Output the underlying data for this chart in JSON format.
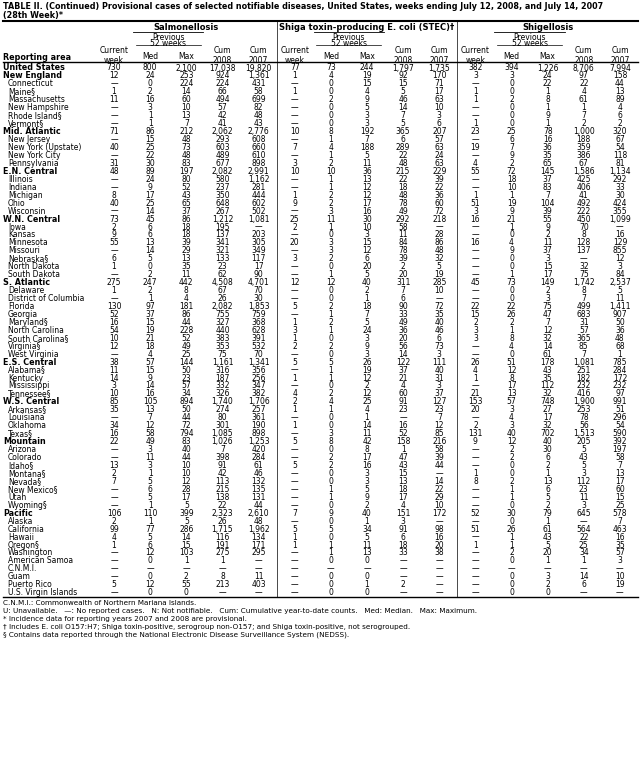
{
  "title1": "TABLE II. (Continued) Provisional cases of selected notifiable diseases, United States, weeks ending July 12, 2008, and July 14, 2007",
  "title2": "(28th Week)*",
  "col_groups": [
    "Salmonellosis",
    "Shiga toxin-producing E. coli (STEC)†",
    "Shigellosis"
  ],
  "rows": [
    [
      "United States",
      "730",
      "800",
      "2,100",
      "17,038",
      "19,820",
      "77",
      "73",
      "244",
      "1,797",
      "1,735",
      "382",
      "394",
      "1,226",
      "8,706",
      "7,994"
    ],
    [
      "New England",
      "12",
      "24",
      "253",
      "924",
      "1,361",
      "1",
      "4",
      "19",
      "92",
      "170",
      "3",
      "3",
      "24",
      "97",
      "158"
    ],
    [
      "Connecticut",
      "—",
      "0",
      "224",
      "224",
      "431",
      "—",
      "0",
      "15",
      "15",
      "71",
      "—",
      "0",
      "22",
      "22",
      "44"
    ],
    [
      "Maine§",
      "1",
      "2",
      "14",
      "66",
      "58",
      "1",
      "0",
      "4",
      "5",
      "17",
      "1",
      "0",
      "1",
      "4",
      "13"
    ],
    [
      "Massachusetts",
      "11",
      "16",
      "60",
      "494",
      "699",
      "—",
      "2",
      "9",
      "46",
      "63",
      "1",
      "2",
      "8",
      "61",
      "89"
    ],
    [
      "New Hampshire",
      "—",
      "3",
      "10",
      "57",
      "82",
      "—",
      "0",
      "5",
      "14",
      "10",
      "—",
      "0",
      "1",
      "1",
      "4"
    ],
    [
      "Rhode Island§",
      "—",
      "1",
      "13",
      "42",
      "48",
      "—",
      "0",
      "3",
      "7",
      "3",
      "—",
      "0",
      "9",
      "7",
      "6"
    ],
    [
      "Vermont§",
      "—",
      "1",
      "7",
      "41",
      "43",
      "—",
      "0",
      "3",
      "5",
      "6",
      "1",
      "0",
      "1",
      "2",
      "2"
    ],
    [
      "Mid. Atlantic",
      "71",
      "86",
      "212",
      "2,062",
      "2,776",
      "10",
      "8",
      "192",
      "365",
      "207",
      "23",
      "25",
      "78",
      "1,000",
      "320"
    ],
    [
      "New Jersey",
      "—",
      "15",
      "48",
      "293",
      "608",
      "—",
      "1",
      "7",
      "6",
      "57",
      "—",
      "6",
      "16",
      "188",
      "67"
    ],
    [
      "New York (Upstate)",
      "40",
      "25",
      "73",
      "603",
      "660",
      "7",
      "4",
      "188",
      "289",
      "63",
      "19",
      "7",
      "36",
      "359",
      "54"
    ],
    [
      "New York City",
      "—",
      "22",
      "48",
      "489",
      "610",
      "—",
      "1",
      "5",
      "22",
      "24",
      "—",
      "9",
      "35",
      "386",
      "118"
    ],
    [
      "Pennsylvania",
      "31",
      "30",
      "83",
      "677",
      "898",
      "3",
      "2",
      "11",
      "48",
      "63",
      "4",
      "2",
      "65",
      "67",
      "81"
    ],
    [
      "E.N. Central",
      "48",
      "89",
      "197",
      "2,082",
      "2,991",
      "10",
      "10",
      "36",
      "215",
      "229",
      "55",
      "72",
      "145",
      "1,586",
      "1,134"
    ],
    [
      "Illinois",
      "—",
      "24",
      "80",
      "580",
      "1,162",
      "—",
      "1",
      "13",
      "22",
      "39",
      "—",
      "18",
      "37",
      "425",
      "292"
    ],
    [
      "Indiana",
      "—",
      "9",
      "52",
      "237",
      "281",
      "—",
      "1",
      "12",
      "18",
      "22",
      "—",
      "10",
      "83",
      "406",
      "33"
    ],
    [
      "Michigan",
      "8",
      "17",
      "43",
      "350",
      "444",
      "1",
      "2",
      "12",
      "48",
      "36",
      "1",
      "1",
      "7",
      "41",
      "30"
    ],
    [
      "Ohio",
      "40",
      "25",
      "65",
      "648",
      "602",
      "9",
      "2",
      "17",
      "78",
      "60",
      "51",
      "19",
      "104",
      "492",
      "424"
    ],
    [
      "Wisconsin",
      "—",
      "14",
      "37",
      "267",
      "502",
      "—",
      "3",
      "16",
      "49",
      "72",
      "3",
      "9",
      "39",
      "222",
      "355"
    ],
    [
      "W.N. Central",
      "73",
      "45",
      "86",
      "1,212",
      "1,081",
      "25",
      "11",
      "30",
      "292",
      "218",
      "16",
      "21",
      "55",
      "450",
      "1,099"
    ],
    [
      "Iowa",
      "2",
      "6",
      "18",
      "195",
      "—",
      "2",
      "1",
      "10",
      "58",
      "—",
      "—",
      "1",
      "9",
      "70",
      "—"
    ],
    [
      "Kansas",
      "9",
      "6",
      "18",
      "137",
      "203",
      "—",
      "0",
      "3",
      "11",
      "28",
      "—",
      "0",
      "2",
      "8",
      "16"
    ],
    [
      "Minnesota",
      "55",
      "13",
      "39",
      "341",
      "305",
      "20",
      "3",
      "15",
      "84",
      "86",
      "16",
      "4",
      "11",
      "128",
      "129"
    ],
    [
      "Missouri",
      "—",
      "14",
      "29",
      "321",
      "349",
      "—",
      "3",
      "12",
      "78",
      "48",
      "—",
      "9",
      "37",
      "137",
      "855"
    ],
    [
      "Nebraska§",
      "6",
      "5",
      "13",
      "133",
      "117",
      "3",
      "2",
      "6",
      "39",
      "32",
      "—",
      "0",
      "3",
      "—",
      "12"
    ],
    [
      "North Dakota",
      "1",
      "0",
      "35",
      "23",
      "17",
      "—",
      "0",
      "20",
      "2",
      "5",
      "—",
      "0",
      "15",
      "32",
      "3"
    ],
    [
      "South Dakota",
      "—",
      "2",
      "11",
      "62",
      "90",
      "—",
      "1",
      "5",
      "20",
      "19",
      "—",
      "1",
      "17",
      "75",
      "84"
    ],
    [
      "S. Atlantic",
      "275",
      "247",
      "442",
      "4,508",
      "4,701",
      "12",
      "12",
      "40",
      "311",
      "285",
      "45",
      "73",
      "149",
      "1,742",
      "2,537"
    ],
    [
      "Delaware",
      "1",
      "2",
      "8",
      "67",
      "70",
      "—",
      "0",
      "2",
      "7",
      "10",
      "—",
      "0",
      "2",
      "8",
      "5"
    ],
    [
      "District of Columbia",
      "—",
      "1",
      "4",
      "26",
      "30",
      "—",
      "0",
      "1",
      "6",
      "—",
      "—",
      "0",
      "3",
      "7",
      "11"
    ],
    [
      "Florida",
      "130",
      "97",
      "181",
      "2,082",
      "1,853",
      "5",
      "2",
      "18",
      "90",
      "72",
      "22",
      "22",
      "75",
      "499",
      "1,411"
    ],
    [
      "Georgia",
      "52",
      "37",
      "86",
      "755",
      "759",
      "—",
      "1",
      "7",
      "33",
      "35",
      "15",
      "26",
      "47",
      "683",
      "907"
    ],
    [
      "Maryland§",
      "16",
      "15",
      "44",
      "327",
      "368",
      "1",
      "2",
      "5",
      "49",
      "40",
      "2",
      "2",
      "7",
      "31",
      "50"
    ],
    [
      "North Carolina",
      "54",
      "19",
      "228",
      "440",
      "628",
      "3",
      "1",
      "24",
      "36",
      "46",
      "3",
      "1",
      "12",
      "57",
      "36"
    ],
    [
      "South Carolina§",
      "10",
      "21",
      "52",
      "383",
      "391",
      "1",
      "0",
      "3",
      "20",
      "6",
      "3",
      "8",
      "32",
      "365",
      "48"
    ],
    [
      "Virginia§",
      "12",
      "18",
      "49",
      "353",
      "532",
      "2",
      "2",
      "9",
      "56",
      "73",
      "—",
      "4",
      "14",
      "85",
      "68"
    ],
    [
      "West Virginia",
      "—",
      "4",
      "25",
      "75",
      "70",
      "—",
      "0",
      "3",
      "14",
      "3",
      "—",
      "0",
      "61",
      "7",
      "1"
    ],
    [
      "E.S. Central",
      "38",
      "57",
      "144",
      "1,161",
      "1,341",
      "5",
      "5",
      "26",
      "122",
      "111",
      "26",
      "51",
      "178",
      "1,081",
      "785"
    ],
    [
      "Alabama§",
      "11",
      "15",
      "50",
      "316",
      "356",
      "—",
      "1",
      "19",
      "37",
      "40",
      "4",
      "12",
      "43",
      "251",
      "284"
    ],
    [
      "Kentucky",
      "14",
      "9",
      "23",
      "187",
      "256",
      "1",
      "1",
      "12",
      "21",
      "31",
      "1",
      "8",
      "35",
      "182",
      "172"
    ],
    [
      "Mississippi",
      "3",
      "14",
      "57",
      "332",
      "347",
      "—",
      "0",
      "2",
      "4",
      "3",
      "—",
      "17",
      "112",
      "232",
      "232"
    ],
    [
      "Tennessee§",
      "10",
      "16",
      "34",
      "326",
      "382",
      "4",
      "2",
      "12",
      "60",
      "37",
      "21",
      "13",
      "32",
      "416",
      "97"
    ],
    [
      "W.S. Central",
      "85",
      "105",
      "894",
      "1,740",
      "1,706",
      "2",
      "4",
      "25",
      "91",
      "127",
      "153",
      "57",
      "748",
      "1,900",
      "991"
    ],
    [
      "Arkansas§",
      "35",
      "13",
      "50",
      "274",
      "257",
      "1",
      "1",
      "4",
      "23",
      "23",
      "20",
      "3",
      "27",
      "253",
      "51"
    ],
    [
      "Louisiana",
      "—",
      "7",
      "44",
      "80",
      "361",
      "—",
      "0",
      "1",
      "—",
      "7",
      "—",
      "4",
      "17",
      "78",
      "296"
    ],
    [
      "Oklahoma",
      "34",
      "12",
      "72",
      "301",
      "190",
      "1",
      "0",
      "14",
      "16",
      "12",
      "2",
      "3",
      "32",
      "56",
      "54"
    ],
    [
      "Texas§",
      "16",
      "58",
      "794",
      "1,085",
      "898",
      "—",
      "3",
      "11",
      "52",
      "85",
      "131",
      "40",
      "702",
      "1,513",
      "590"
    ],
    [
      "Mountain",
      "22",
      "49",
      "83",
      "1,026",
      "1,253",
      "5",
      "8",
      "42",
      "158",
      "216",
      "9",
      "12",
      "40",
      "205",
      "392"
    ],
    [
      "Arizona",
      "—",
      "3",
      "40",
      "7",
      "420",
      "—",
      "0",
      "8",
      "1",
      "58",
      "—",
      "2",
      "30",
      "5",
      "197"
    ],
    [
      "Colorado",
      "—",
      "11",
      "44",
      "398",
      "284",
      "—",
      "2",
      "17",
      "47",
      "39",
      "—",
      "2",
      "6",
      "43",
      "58"
    ],
    [
      "Idaho§",
      "13",
      "3",
      "10",
      "91",
      "61",
      "5",
      "2",
      "16",
      "43",
      "44",
      "—",
      "0",
      "2",
      "5",
      "7"
    ],
    [
      "Montana§",
      "2",
      "1",
      "10",
      "42",
      "46",
      "—",
      "0",
      "3",
      "15",
      "—",
      "1",
      "0",
      "1",
      "3",
      "13"
    ],
    [
      "Nevada§",
      "7",
      "5",
      "12",
      "113",
      "132",
      "—",
      "0",
      "3",
      "13",
      "14",
      "8",
      "2",
      "13",
      "112",
      "17"
    ],
    [
      "New Mexico§",
      "—",
      "6",
      "28",
      "215",
      "135",
      "—",
      "1",
      "5",
      "18",
      "22",
      "—",
      "1",
      "6",
      "23",
      "60"
    ],
    [
      "Utah",
      "—",
      "5",
      "17",
      "138",
      "131",
      "—",
      "1",
      "9",
      "17",
      "29",
      "—",
      "1",
      "5",
      "11",
      "15"
    ],
    [
      "Wyoming§",
      "—",
      "1",
      "5",
      "22",
      "44",
      "—",
      "0",
      "2",
      "4",
      "10",
      "—",
      "0",
      "2",
      "3",
      "25"
    ],
    [
      "Pacific",
      "106",
      "110",
      "399",
      "2,323",
      "2,610",
      "7",
      "9",
      "40",
      "151",
      "172",
      "52",
      "30",
      "79",
      "645",
      "578"
    ],
    [
      "Alaska",
      "2",
      "1",
      "5",
      "26",
      "48",
      "—",
      "0",
      "1",
      "3",
      "—",
      "—",
      "0",
      "1",
      "—",
      "7"
    ],
    [
      "California",
      "99",
      "77",
      "286",
      "1,715",
      "1,962",
      "5",
      "5",
      "34",
      "91",
      "98",
      "51",
      "26",
      "61",
      "564",
      "463"
    ],
    [
      "Hawaii",
      "4",
      "5",
      "14",
      "116",
      "134",
      "1",
      "0",
      "5",
      "6",
      "16",
      "—",
      "1",
      "43",
      "22",
      "16"
    ],
    [
      "Oregon§",
      "1",
      "6",
      "15",
      "191",
      "171",
      "1",
      "1",
      "11",
      "18",
      "20",
      "1",
      "1",
      "5",
      "25",
      "35"
    ],
    [
      "Washington",
      "—",
      "12",
      "103",
      "275",
      "295",
      "—",
      "1",
      "13",
      "33",
      "38",
      "—",
      "2",
      "20",
      "34",
      "57"
    ],
    [
      "American Samoa",
      "—",
      "0",
      "1",
      "1",
      "—",
      "—",
      "0",
      "0",
      "—",
      "—",
      "—",
      "0",
      "1",
      "1",
      "3"
    ],
    [
      "C.N.M.I.",
      "—",
      "—",
      "—",
      "—",
      "—",
      "—",
      "—",
      "—",
      "—",
      "—",
      "—",
      "—",
      "—",
      "—",
      "—"
    ],
    [
      "Guam",
      "—",
      "0",
      "2",
      "8",
      "11",
      "—",
      "0",
      "0",
      "—",
      "—",
      "—",
      "0",
      "3",
      "14",
      "10"
    ],
    [
      "Puerto Rico",
      "5",
      "12",
      "55",
      "213",
      "403",
      "—",
      "0",
      "1",
      "2",
      "—",
      "—",
      "0",
      "2",
      "6",
      "19"
    ],
    [
      "U.S. Virgin Islands",
      "—",
      "0",
      "0",
      "—",
      "—",
      "—",
      "0",
      "0",
      "—",
      "—",
      "—",
      "0",
      "0",
      "—",
      "—"
    ]
  ],
  "bold_rows": [
    0,
    1,
    8,
    13,
    19,
    27,
    37,
    42,
    47,
    56
  ],
  "footnote_lines": [
    "C.N.M.I.: Commonwealth of Northern Mariana Islands.",
    "U: Unavailable.   —: No reported cases.   N: Not notifiable.   Cum: Cumulative year-to-date counts.   Med: Median.   Max: Maximum.",
    "* Incidence data for reporting years 2007 and 2008 are provisional.",
    "† Includes E. coli O157:H7; Shiga toxin-positive, serogroup non-O157; and Shiga toxin-positive, not serogrouped.",
    "§ Contains data reported through the National Electronic Disease Surveillance System (NEDSS)."
  ]
}
